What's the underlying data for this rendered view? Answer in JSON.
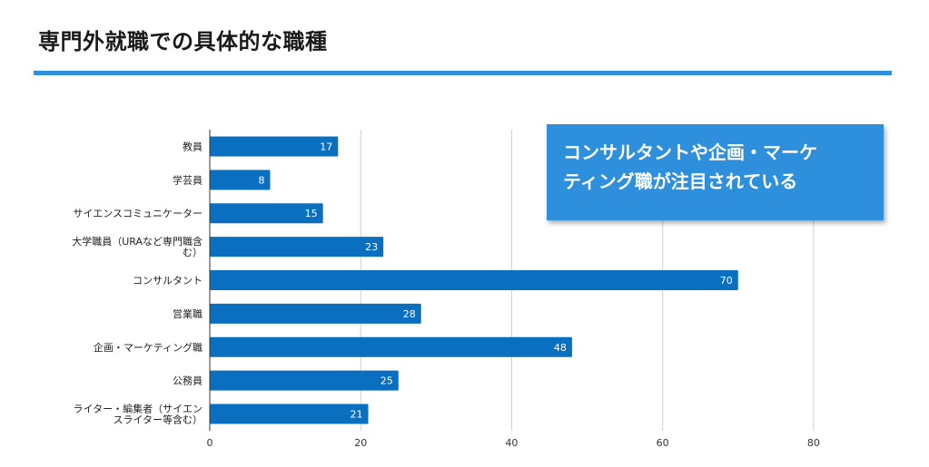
{
  "page": {
    "title": "専門外就職での具体的な職種",
    "callout": "コンサルタントや企画・マーケ\nティング職が注目されている"
  },
  "colors": {
    "accent": "#2e8fdc",
    "bar": "#0b6fc0"
  },
  "chart_data": {
    "type": "bar",
    "orientation": "horizontal",
    "categories": [
      "教員",
      "学芸員",
      "サイエンスコミュニケーター",
      "大学職員（URAなど専門職含む）",
      "コンサルタント",
      "営業職",
      "企画・マーケティング職",
      "公務員",
      "ライター・編集者（サイエンスライター等含む）"
    ],
    "category_lines": [
      [
        "教員"
      ],
      [
        "学芸員"
      ],
      [
        "サイエンスコミュニケーター"
      ],
      [
        "大学職員（URAなど専門職含",
        "む）"
      ],
      [
        "コンサルタント"
      ],
      [
        "営業職"
      ],
      [
        "企画・マーケティング職"
      ],
      [
        "公務員"
      ],
      [
        "ライター・編集者（サイエン",
        "スライター等含む）"
      ]
    ],
    "values": [
      17,
      8,
      15,
      23,
      70,
      28,
      48,
      25,
      21
    ],
    "xlim": [
      0,
      90
    ],
    "xticks": [
      0,
      20,
      40,
      60,
      80
    ],
    "grid": true,
    "data_labels": true
  }
}
